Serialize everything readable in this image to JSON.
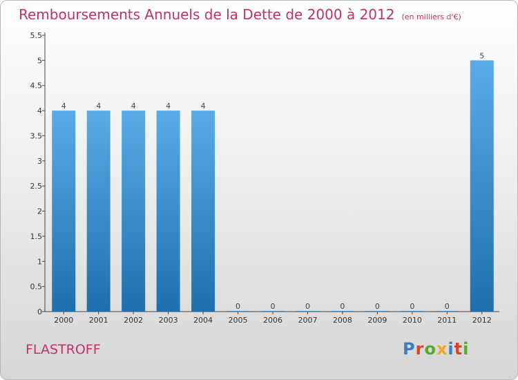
{
  "header": {
    "title": "Remboursements Annuels de la Dette de 2000 à 2012",
    "subtitle": "(en milliers d'€)"
  },
  "footer": {
    "commune": "FLASTROFF",
    "brand": "Proxiti",
    "brand_colors": [
      "#3a7ec6",
      "#e0402a",
      "#5aa82a",
      "#f2a81e",
      "#3a7ec6",
      "#e0402a",
      "#5aa82a"
    ]
  },
  "colors": {
    "bar_top": "#5aabe6",
    "bar_bottom": "#1f6fae",
    "title": "#c0306a"
  },
  "chart_data": {
    "type": "bar",
    "categories": [
      "2000",
      "2001",
      "2002",
      "2003",
      "2004",
      "2005",
      "2006",
      "2007",
      "2008",
      "2009",
      "2010",
      "2011",
      "2012"
    ],
    "values": [
      4,
      4,
      4,
      4,
      4,
      0,
      0,
      0,
      0,
      0,
      0,
      0,
      5
    ],
    "data_labels": [
      "4",
      "4",
      "4",
      "4",
      "4",
      "0",
      "0",
      "0",
      "0",
      "0",
      "0",
      "0",
      "5"
    ],
    "yticks": [
      0,
      0.5,
      1,
      1.5,
      2,
      2.5,
      3,
      3.5,
      4,
      4.5,
      5,
      5.5
    ],
    "ytick_labels": [
      "0",
      "0.5",
      "1",
      "1.5",
      "2",
      "2.5",
      "3",
      "3.5",
      "4",
      "4.5",
      "5",
      "5.5"
    ],
    "ylim": [
      0,
      5.5
    ],
    "grid": false,
    "legend": "none"
  }
}
